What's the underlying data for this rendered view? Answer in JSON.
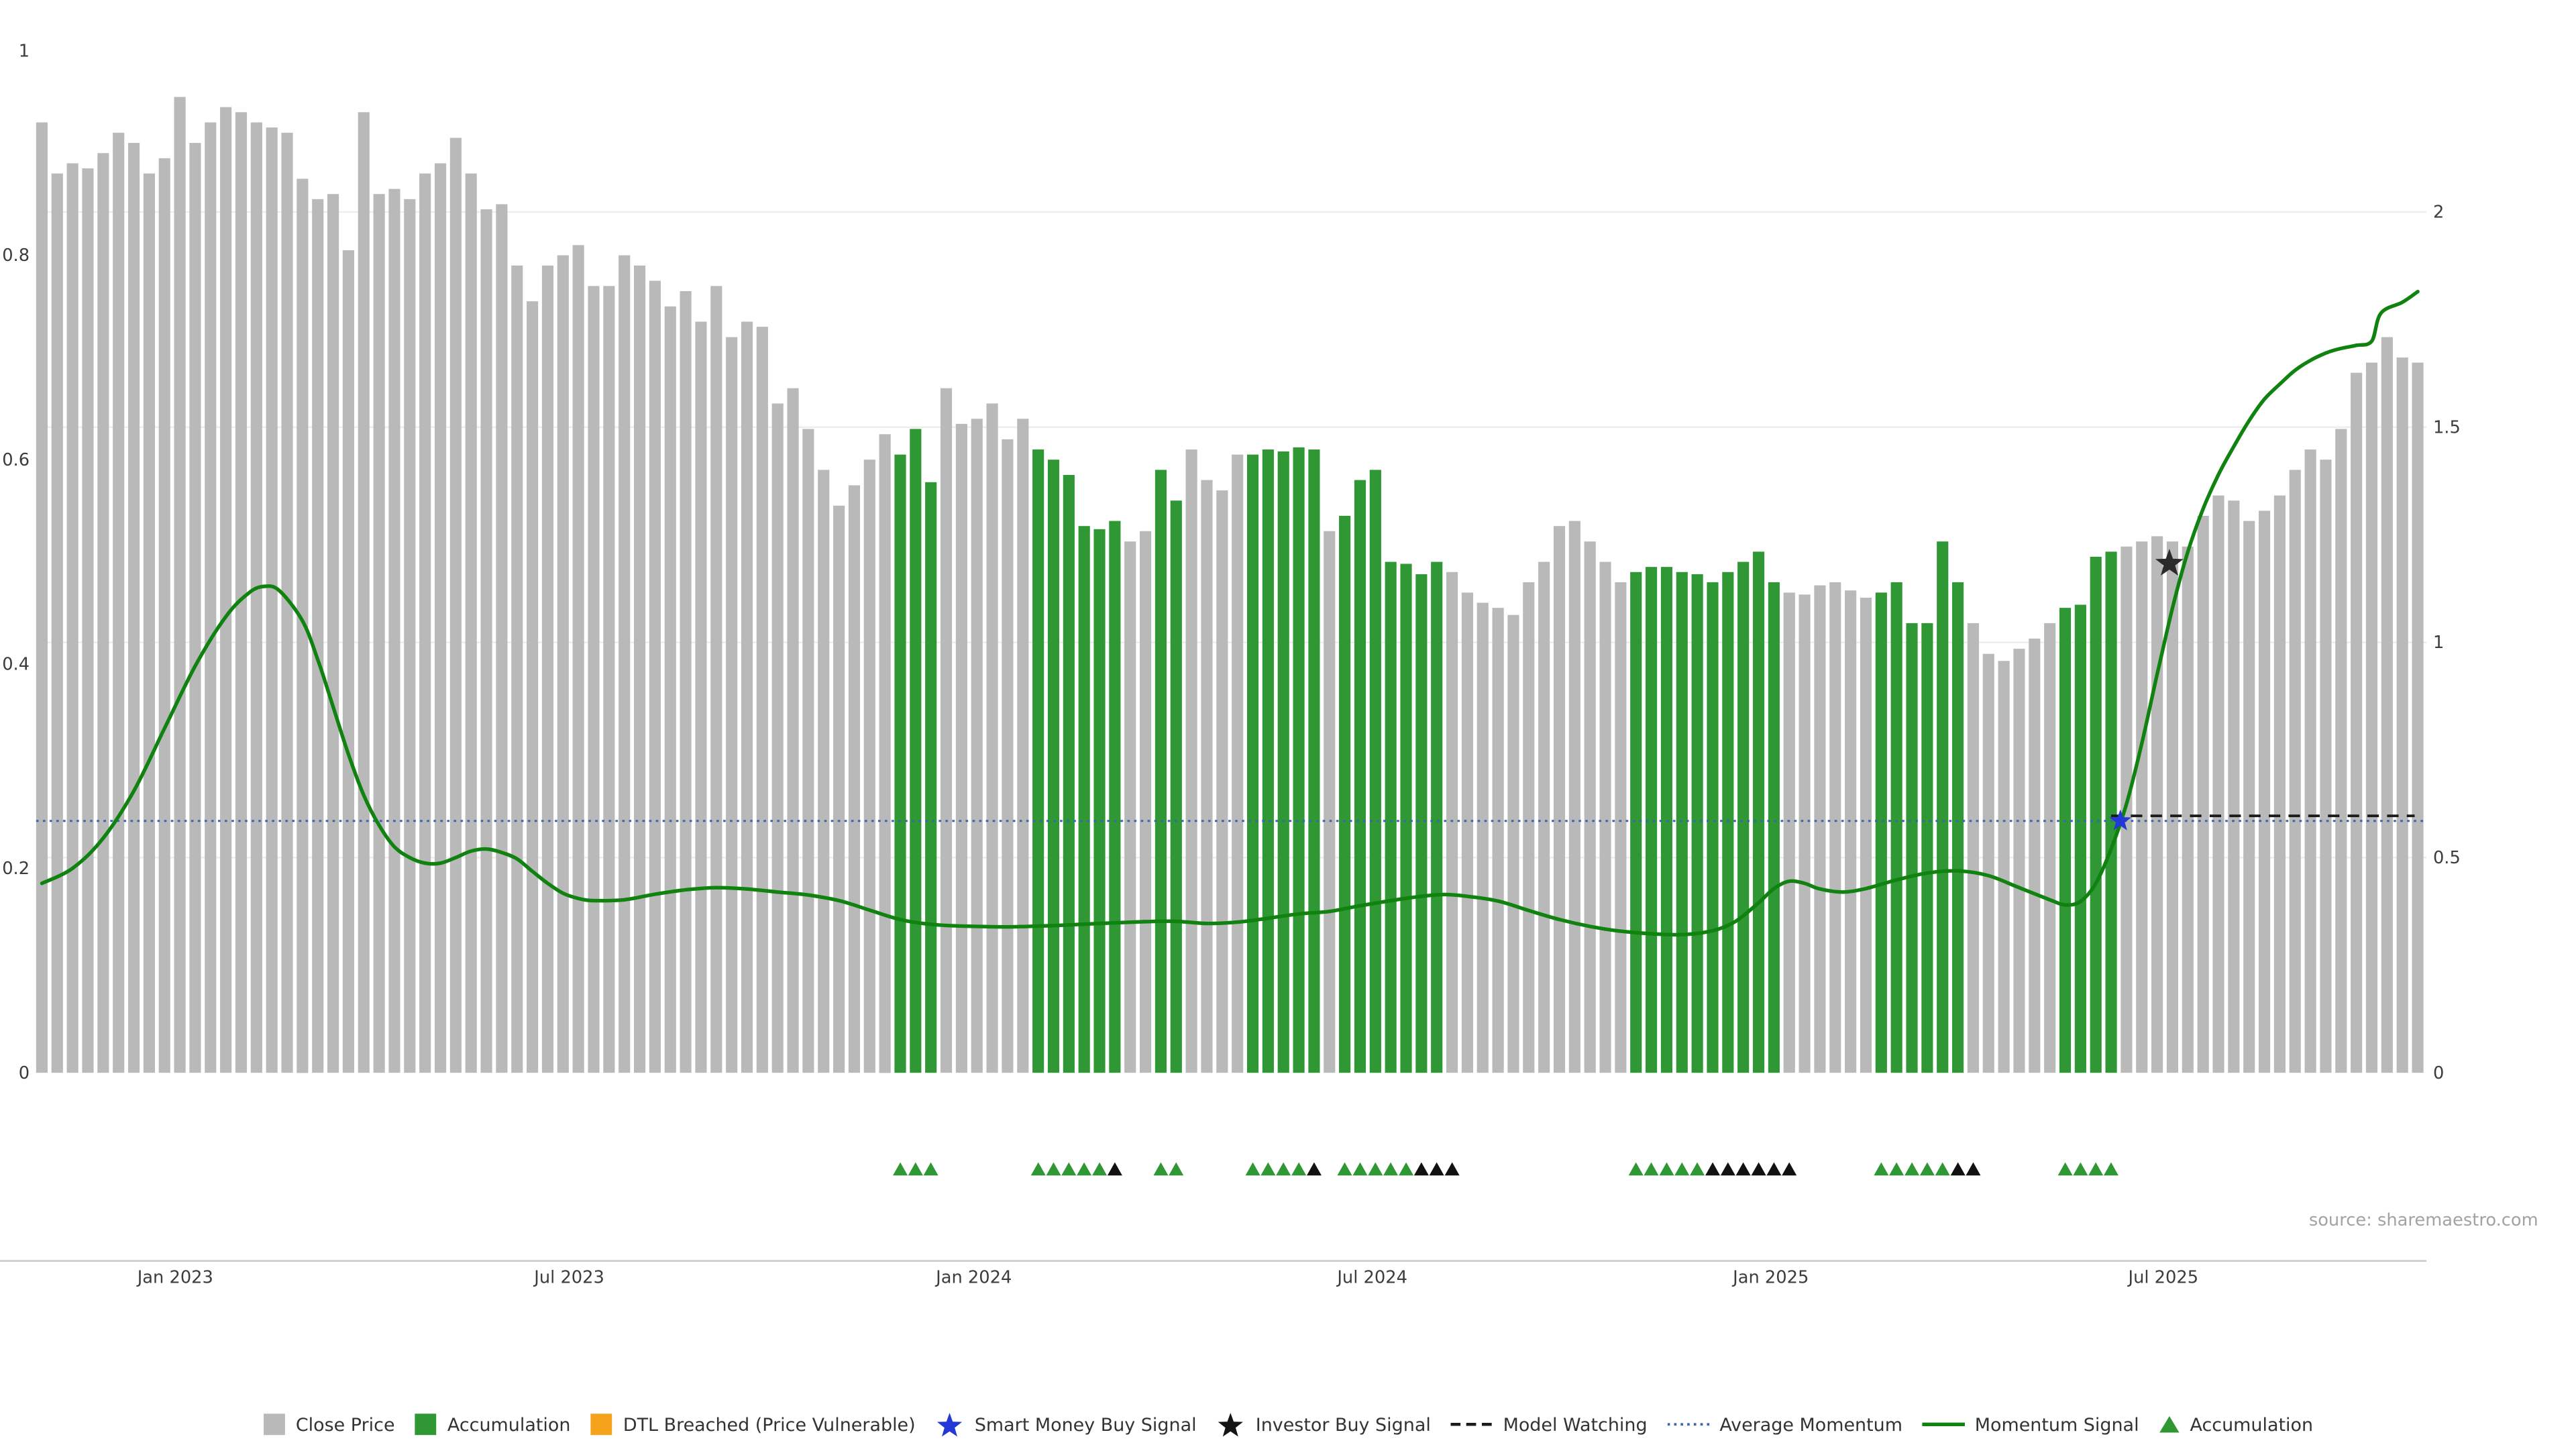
{
  "meta": {
    "source": "source: sharemaestro.com"
  },
  "colors": {
    "close_price": "#b9b9b9",
    "accumulation": "#2f9733",
    "momentum_signal": "#108210",
    "average_momentum": "#3a66b0",
    "model_watching": "#1a1a1a",
    "smart_money": "#2438d8",
    "investor": "#2b2b2b",
    "grid": "#ededed",
    "spine": "#c9c9c9"
  },
  "legend": [
    {
      "name": "close-price",
      "label": "Close Price",
      "glyph": "square",
      "color": "#b9b9b9"
    },
    {
      "name": "accumulation",
      "label": "Accumulation",
      "glyph": "square",
      "color": "#2f9733"
    },
    {
      "name": "dtl-breached",
      "label": "DTL Breached (Price Vulnerable)",
      "glyph": "square",
      "color": "#f5a31c"
    },
    {
      "name": "smart-money-buy-signal",
      "label": "Smart Money Buy Signal",
      "glyph": "star",
      "color": "#2438d8"
    },
    {
      "name": "investor-buy-signal",
      "label": "Investor Buy Signal",
      "glyph": "star",
      "color": "#141414"
    },
    {
      "name": "model-watching",
      "label": "Model Watching",
      "glyph": "dashed-line",
      "color": "#1a1a1a"
    },
    {
      "name": "average-momentum",
      "label": "Average Momentum",
      "glyph": "dotted-line",
      "color": "#3a66b0"
    },
    {
      "name": "momentum-signal",
      "label": "Momentum Signal",
      "glyph": "line",
      "color": "#108210"
    },
    {
      "name": "accumulation-marker",
      "label": "Accumulation",
      "glyph": "triangle",
      "color": "#2f9733"
    }
  ],
  "chart_data": {
    "type": "bar",
    "overlay_type": "line",
    "title": "",
    "x_unit": "weekly bars, Nov 2022 - Oct 2025",
    "left_axis": {
      "range": [
        0,
        1
      ],
      "tick_labels": [
        {
          "label": "0",
          "v": 0
        },
        {
          "label": "0.2",
          "v": 0.2
        },
        {
          "label": "0.4",
          "v": 0.4
        },
        {
          "label": "0.6",
          "v": 0.6
        },
        {
          "label": "0.8",
          "v": 0.8
        },
        {
          "label": "1",
          "v": 1
        }
      ]
    },
    "right_axis": {
      "range": [
        0,
        2
      ],
      "ticks": [
        0,
        0.5,
        1,
        1.5,
        2
      ],
      "tick_labels": [
        {
          "label": "0",
          "v": 0
        },
        {
          "label": "0.5",
          "v": 0.5
        },
        {
          "label": "1",
          "v": 1
        },
        {
          "label": "1.5",
          "v": 1.5
        },
        {
          "label": "2",
          "v": 2
        }
      ]
    },
    "x_ticks": [
      {
        "label": "Jan 2023",
        "pos": 8.7
      },
      {
        "label": "Jul 2023",
        "pos": 34.4
      },
      {
        "label": "Jan 2024",
        "pos": 60.8
      },
      {
        "label": "Jul 2024",
        "pos": 86.8
      },
      {
        "label": "Jan 2025",
        "pos": 112.8
      },
      {
        "label": "Jul 2025",
        "pos": 138.4
      }
    ],
    "close_price": [
      0.93,
      0.88,
      0.89,
      0.885,
      0.9,
      0.92,
      0.91,
      0.88,
      0.895,
      0.955,
      0.91,
      0.93,
      0.945,
      0.94,
      0.93,
      0.925,
      0.92,
      0.875,
      0.855,
      0.86,
      0.805,
      0.94,
      0.86,
      0.865,
      0.855,
      0.88,
      0.89,
      0.915,
      0.88,
      0.845,
      0.85,
      0.79,
      0.755,
      0.79,
      0.8,
      0.81,
      0.77,
      0.77,
      0.8,
      0.79,
      0.775,
      0.75,
      0.765,
      0.735,
      0.77,
      0.72,
      0.735,
      0.73,
      0.655,
      0.67,
      0.63,
      0.59,
      0.555,
      0.575,
      0.6,
      0.625,
      0.605,
      0.63,
      0.578,
      0.67,
      0.635,
      0.64,
      0.655,
      0.62,
      0.64,
      0.61,
      0.6,
      0.585,
      0.535,
      0.532,
      0.54,
      0.52,
      0.53,
      0.59,
      0.56,
      0.61,
      0.58,
      0.57,
      0.605,
      0.605,
      0.61,
      0.608,
      0.612,
      0.61,
      0.53,
      0.545,
      0.58,
      0.59,
      0.5,
      0.498,
      0.488,
      0.5,
      0.49,
      0.47,
      0.46,
      0.455,
      0.448,
      0.48,
      0.5,
      0.535,
      0.54,
      0.52,
      0.5,
      0.48,
      0.49,
      0.495,
      0.495,
      0.49,
      0.488,
      0.48,
      0.49,
      0.5,
      0.51,
      0.48,
      0.47,
      0.468,
      0.477,
      0.48,
      0.472,
      0.465,
      0.47,
      0.48,
      0.44,
      0.44,
      0.52,
      0.48,
      0.44,
      0.41,
      0.403,
      0.415,
      0.425,
      0.44,
      0.455,
      0.458,
      0.505,
      0.51,
      0.515,
      0.52,
      0.525,
      0.52,
      0.515,
      0.545,
      0.565,
      0.56,
      0.54,
      0.55,
      0.565,
      0.59,
      0.61,
      0.6,
      0.63,
      0.685,
      0.695,
      0.72,
      0.7,
      0.695
    ],
    "accumulation_ranges": [
      [
        56,
        58
      ],
      [
        65,
        70
      ],
      [
        73,
        74
      ],
      [
        79,
        83
      ],
      [
        85,
        91
      ],
      [
        104,
        113
      ],
      [
        120,
        125
      ],
      [
        132,
        135
      ]
    ],
    "momentum_signal": [
      [
        0,
        0.44
      ],
      [
        2,
        0.475
      ],
      [
        4,
        0.545
      ],
      [
        6,
        0.655
      ],
      [
        8,
        0.8
      ],
      [
        10,
        0.945
      ],
      [
        12,
        1.06
      ],
      [
        13.5,
        1.115
      ],
      [
        14.5,
        1.13
      ],
      [
        15.5,
        1.12
      ],
      [
        17,
        1.05
      ],
      [
        18,
        0.96
      ],
      [
        19,
        0.85
      ],
      [
        20,
        0.74
      ],
      [
        21,
        0.645
      ],
      [
        22,
        0.575
      ],
      [
        23,
        0.525
      ],
      [
        24,
        0.5
      ],
      [
        25,
        0.487
      ],
      [
        26,
        0.487
      ],
      [
        27,
        0.5
      ],
      [
        28,
        0.515
      ],
      [
        29,
        0.52
      ],
      [
        30,
        0.512
      ],
      [
        31,
        0.497
      ],
      [
        32,
        0.468
      ],
      [
        33,
        0.44
      ],
      [
        34,
        0.417
      ],
      [
        35,
        0.405
      ],
      [
        36,
        0.4
      ],
      [
        38,
        0.402
      ],
      [
        40,
        0.415
      ],
      [
        42,
        0.425
      ],
      [
        44,
        0.43
      ],
      [
        46,
        0.427
      ],
      [
        48,
        0.42
      ],
      [
        50,
        0.413
      ],
      [
        52,
        0.4
      ],
      [
        54,
        0.378
      ],
      [
        56,
        0.356
      ],
      [
        58,
        0.345
      ],
      [
        60,
        0.341
      ],
      [
        63,
        0.339
      ],
      [
        66,
        0.342
      ],
      [
        69,
        0.347
      ],
      [
        72,
        0.351
      ],
      [
        74,
        0.352
      ],
      [
        76,
        0.347
      ],
      [
        78,
        0.35
      ],
      [
        80,
        0.359
      ],
      [
        82,
        0.369
      ],
      [
        84,
        0.375
      ],
      [
        86,
        0.388
      ],
      [
        88,
        0.4
      ],
      [
        90,
        0.41
      ],
      [
        91.5,
        0.414
      ],
      [
        93,
        0.41
      ],
      [
        95,
        0.399
      ],
      [
        97,
        0.377
      ],
      [
        99,
        0.356
      ],
      [
        101,
        0.34
      ],
      [
        103,
        0.329
      ],
      [
        105,
        0.323
      ],
      [
        107,
        0.321
      ],
      [
        109,
        0.33
      ],
      [
        110.5,
        0.352
      ],
      [
        112,
        0.395
      ],
      [
        113,
        0.428
      ],
      [
        114,
        0.445
      ],
      [
        115,
        0.44
      ],
      [
        116,
        0.427
      ],
      [
        117.5,
        0.42
      ],
      [
        119,
        0.428
      ],
      [
        121,
        0.448
      ],
      [
        123,
        0.464
      ],
      [
        125,
        0.469
      ],
      [
        127,
        0.458
      ],
      [
        129,
        0.43
      ],
      [
        131,
        0.402
      ],
      [
        132,
        0.39
      ],
      [
        133,
        0.398
      ],
      [
        134,
        0.44
      ],
      [
        135,
        0.52
      ],
      [
        136,
        0.625
      ],
      [
        137,
        0.765
      ],
      [
        138,
        0.925
      ],
      [
        139,
        1.08
      ],
      [
        140,
        1.21
      ],
      [
        141,
        1.31
      ],
      [
        142,
        1.39
      ],
      [
        143,
        1.455
      ],
      [
        144,
        1.515
      ],
      [
        145,
        1.565
      ],
      [
        146,
        1.6
      ],
      [
        147,
        1.632
      ],
      [
        148,
        1.655
      ],
      [
        149,
        1.672
      ],
      [
        150,
        1.683
      ],
      [
        151,
        1.69
      ],
      [
        152,
        1.7
      ],
      [
        152.6,
        1.765
      ],
      [
        154,
        1.79
      ],
      [
        155,
        1.815
      ]
    ],
    "average_momentum": 0.585,
    "model_watching": {
      "value": 0.597,
      "from": 135,
      "to": 154.8
    },
    "smart_money_buy_signal": {
      "pos": 135.6,
      "value": 0.585
    },
    "investor_buy_signal": {
      "pos": 138.8,
      "value": 1.183
    },
    "triangle_markers": {
      "green": [
        56,
        57,
        58,
        65,
        66,
        67,
        68,
        69,
        73,
        74,
        79,
        80,
        81,
        82,
        85,
        86,
        87,
        88,
        89,
        104,
        105,
        106,
        107,
        108,
        120,
        121,
        122,
        123,
        124,
        132,
        133,
        134,
        135
      ],
      "black": [
        70,
        83,
        90,
        91,
        92,
        109,
        110,
        111,
        112,
        113,
        114,
        125,
        126
      ]
    }
  }
}
